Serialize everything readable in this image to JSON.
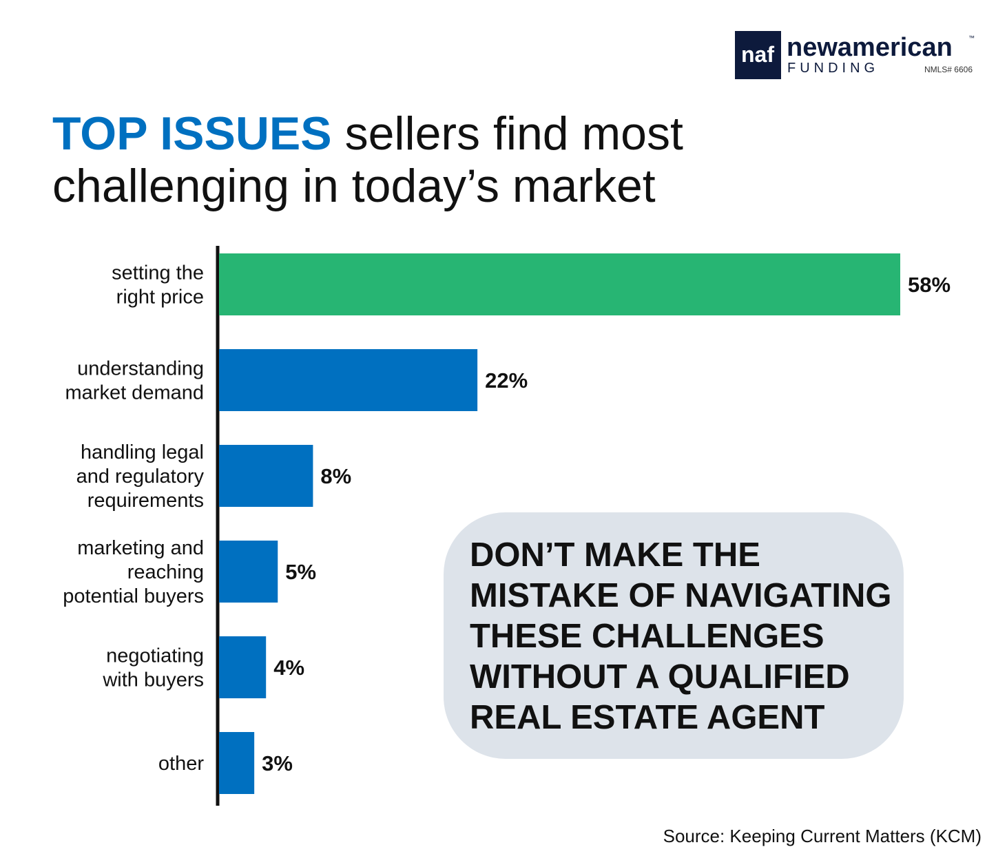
{
  "logo": {
    "mark": "naf",
    "name": "newamerican",
    "trademark": "™",
    "sub": "FUNDING",
    "nmls": "NMLS# 6606"
  },
  "chart_data": {
    "type": "bar",
    "orientation": "horizontal",
    "title": {
      "highlight": "TOP ISSUES",
      "lines": [
        "sellers find most",
        "challenging in today’s market"
      ]
    },
    "categories": [
      [
        "setting the",
        "right price"
      ],
      [
        "understanding",
        "market demand"
      ],
      [
        "handling legal",
        "and regulatory",
        "requirements"
      ],
      [
        "marketing and",
        "reaching",
        "potential buyers"
      ],
      [
        "negotiating",
        "with buyers"
      ],
      [
        "other"
      ]
    ],
    "values": [
      58,
      22,
      8,
      5,
      4,
      3
    ],
    "value_labels": [
      "58%",
      "22%",
      "8%",
      "5%",
      "4%",
      "3%"
    ],
    "colors": [
      "#27b573",
      "#0070c0",
      "#0070c0",
      "#0070c0",
      "#0070c0",
      "#0070c0"
    ],
    "annotation": [
      "DON’T MAKE THE",
      "MISTAKE OF NAVIGATING",
      "THESE CHALLENGES",
      "WITHOUT A QUALIFIED",
      "REAL ESTATE AGENT"
    ],
    "source": "Source: Keeping Current Matters (KCM)"
  }
}
